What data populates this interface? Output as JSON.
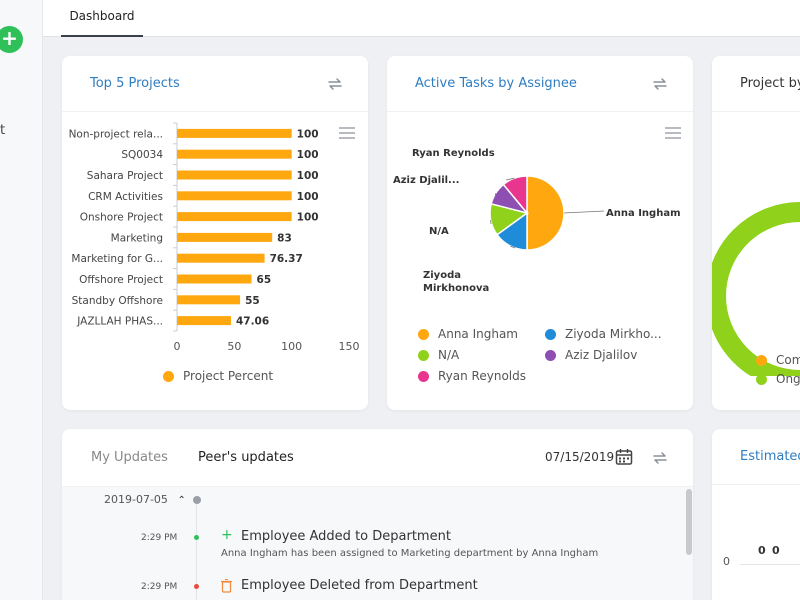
{
  "sidebar": {
    "add_label": "+",
    "nav_text": "t"
  },
  "header": {
    "tab_label": "Dashboard"
  },
  "cards": {
    "top_projects": {
      "title": "Top 5 Projects"
    },
    "active_tasks": {
      "title": "Active Tasks by Assignee"
    },
    "project_by": {
      "title": "Project by"
    },
    "estimated": {
      "title": "Estimated"
    }
  },
  "chart_data": [
    {
      "type": "bar",
      "orientation": "horizontal",
      "categories": [
        "Non-project rela...",
        "SQ0034",
        "Sahara Project",
        "CRM Activities",
        "Onshore Project",
        "Marketing",
        "Marketing for G...",
        "Offshore Project",
        "Standby Offshore",
        "JAZLLAH PHAS..."
      ],
      "series": [
        {
          "name": "Project Percent",
          "values": [
            100,
            100,
            100,
            100,
            100,
            83,
            76.37,
            65,
            55,
            47.06
          ]
        }
      ],
      "data_labels": [
        "100",
        "100",
        "100",
        "100",
        "100",
        "83",
        "76.37",
        "65",
        "55",
        "47.06"
      ],
      "xlim": [
        0,
        150
      ],
      "xticks": [
        "0",
        "50",
        "100",
        "150"
      ],
      "legend": "bottom",
      "color": "#ffa70f"
    },
    {
      "type": "pie",
      "labels": [
        "Anna Ingham",
        "Ziyoda Mirkhonova",
        "N/A",
        "Aziz Djalilov",
        "Ryan Reynolds"
      ],
      "callout_labels": [
        "Anna Ingham",
        "Ziyoda\nMirkhonova",
        "N/A",
        "Aziz Djalil...",
        "Ryan Reynolds"
      ],
      "legend_labels": [
        "Anna Ingham",
        "Ziyoda Mirkho...",
        "N/A",
        "Aziz Djalilov",
        "Ryan Reynolds"
      ],
      "values": [
        50,
        15,
        14,
        10,
        11
      ],
      "colors": [
        "#ffa70f",
        "#1f8cd9",
        "#8fd11b",
        "#8d4fb1",
        "#e8368f"
      ],
      "legend": "bottom"
    },
    {
      "type": "pie",
      "style": "donut",
      "legend_labels": [
        "Com",
        "Ong"
      ],
      "colors": [
        "#ffa70f",
        "#8fd11b"
      ]
    }
  ],
  "updates": {
    "tab_my": "My Updates",
    "tab_peers": "Peer's updates",
    "date": "07/15/2019",
    "group_date": "2019-07-05",
    "items": [
      {
        "time": "2:29 PM",
        "title": "Employee Added to Department",
        "desc": "Anna Ingham has been assigned to Marketing department by Anna Ingham"
      },
      {
        "time": "2:29 PM",
        "title": "Employee Deleted from Department",
        "desc": ""
      }
    ]
  },
  "estimated_values": [
    "0",
    "0"
  ],
  "estimated_axis": "0"
}
